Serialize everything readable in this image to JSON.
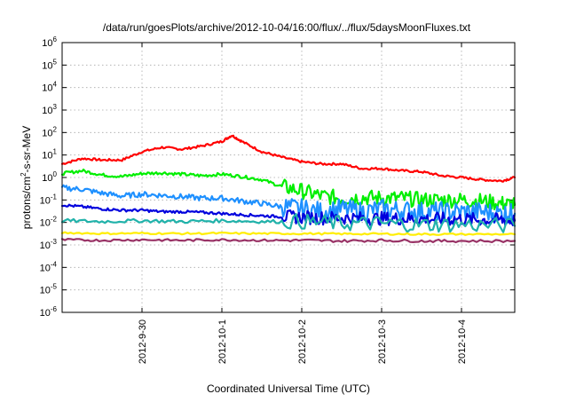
{
  "chart_data": {
    "type": "line",
    "title": "/data/run/goesPlots/archive/2012-10-04/16:00/flux/../flux/5daysMoonFluxes.txt",
    "xlabel": "Coordinated Universal Time (UTC)",
    "ylabel": "protons/cm2-s-sr-MeV",
    "ylabel_parts": {
      "pre": "protons/cm",
      "sup": "2",
      "post": "-s-sr-MeV"
    },
    "y_scale": "log",
    "ylim": [
      1e-06,
      1000000.0
    ],
    "xlim": [
      "2012-09-29T00:00",
      "2012-10-04T16:00"
    ],
    "grid": true,
    "legend": "none",
    "x_ticks": [
      {
        "label": "2012-9-30",
        "at": "2012-09-30T00:00"
      },
      {
        "label": "2012-10-1",
        "at": "2012-10-01T00:00"
      },
      {
        "label": "2012-10-2",
        "at": "2012-10-02T00:00"
      },
      {
        "label": "2012-10-3",
        "at": "2012-10-03T00:00"
      },
      {
        "label": "2012-10-4",
        "at": "2012-10-04T00:00"
      }
    ],
    "y_ticks": [
      {
        "base": "10",
        "exp": "-6",
        "value": 1e-06
      },
      {
        "base": "10",
        "exp": "-5",
        "value": 1e-05
      },
      {
        "base": "10",
        "exp": "-4",
        "value": 0.0001
      },
      {
        "base": "10",
        "exp": "-3",
        "value": 0.001
      },
      {
        "base": "10",
        "exp": "-2",
        "value": 0.01
      },
      {
        "base": "10",
        "exp": "-1",
        "value": 0.1
      },
      {
        "base": "10",
        "exp": "0",
        "value": 1
      },
      {
        "base": "10",
        "exp": "1",
        "value": 10
      },
      {
        "base": "10",
        "exp": "2",
        "value": 100
      },
      {
        "base": "10",
        "exp": "3",
        "value": 1000
      },
      {
        "base": "10",
        "exp": "4",
        "value": 10000
      },
      {
        "base": "10",
        "exp": "5",
        "value": 100000
      },
      {
        "base": "10",
        "exp": "6",
        "value": 1000000
      }
    ],
    "series": [
      {
        "color": "#ff0000",
        "x": [
          "2012-09-29T00:00",
          "2012-09-29T06:00",
          "2012-09-29T12:00",
          "2012-09-29T18:00",
          "2012-09-30T00:00",
          "2012-09-30T06:00",
          "2012-09-30T12:00",
          "2012-09-30T18:00",
          "2012-10-01T00:00",
          "2012-10-01T03:00",
          "2012-10-01T06:00",
          "2012-10-01T12:00",
          "2012-10-01T18:00",
          "2012-10-02T00:00",
          "2012-10-02T06:00",
          "2012-10-02T12:00",
          "2012-10-02T18:00",
          "2012-10-03T00:00",
          "2012-10-03T06:00",
          "2012-10-03T12:00",
          "2012-10-03T18:00",
          "2012-10-04T00:00",
          "2012-10-04T06:00",
          "2012-10-04T12:00",
          "2012-10-04T16:00"
        ],
        "y": [
          4,
          7,
          6,
          6,
          14,
          22,
          18,
          25,
          40,
          75,
          40,
          14,
          8,
          5,
          4,
          4,
          2.5,
          2.5,
          2,
          1.8,
          1.2,
          1,
          0.8,
          0.7,
          1
        ]
      },
      {
        "color": "#00ee00",
        "x": [
          "2012-09-29T00:00",
          "2012-09-29T06:00",
          "2012-09-29T12:00",
          "2012-09-29T18:00",
          "2012-09-30T00:00",
          "2012-09-30T06:00",
          "2012-09-30T12:00",
          "2012-09-30T18:00",
          "2012-10-01T00:00",
          "2012-10-01T06:00",
          "2012-10-01T12:00",
          "2012-10-01T18:00",
          "2012-10-02T00:00",
          "2012-10-02T06:00",
          "2012-10-02T12:00",
          "2012-10-02T18:00",
          "2012-10-03T00:00",
          "2012-10-03T06:00",
          "2012-10-03T12:00",
          "2012-10-03T18:00",
          "2012-10-04T00:00",
          "2012-10-04T06:00",
          "2012-10-04T12:00",
          "2012-10-04T16:00"
        ],
        "y": [
          1.5,
          2,
          1.3,
          1.1,
          1.5,
          1.6,
          1.4,
          1.2,
          1.4,
          1.1,
          0.8,
          0.4,
          0.25,
          0.15,
          0.12,
          0.13,
          0.12,
          0.12,
          0.1,
          0.1,
          0.1,
          0.09,
          0.07,
          0.06
        ]
      },
      {
        "color": "#1e90ff",
        "x": [
          "2012-09-29T00:00",
          "2012-09-29T06:00",
          "2012-09-29T12:00",
          "2012-09-29T18:00",
          "2012-09-30T00:00",
          "2012-09-30T06:00",
          "2012-09-30T12:00",
          "2012-09-30T18:00",
          "2012-10-01T00:00",
          "2012-10-01T06:00",
          "2012-10-01T12:00",
          "2012-10-01T18:00",
          "2012-10-02T00:00",
          "2012-10-02T06:00",
          "2012-10-02T12:00",
          "2012-10-02T18:00",
          "2012-10-03T00:00",
          "2012-10-03T06:00",
          "2012-10-03T12:00",
          "2012-10-03T18:00",
          "2012-10-04T00:00",
          "2012-10-04T06:00",
          "2012-10-04T12:00",
          "2012-10-04T16:00"
        ],
        "y": [
          0.35,
          0.3,
          0.2,
          0.15,
          0.18,
          0.16,
          0.14,
          0.12,
          0.12,
          0.09,
          0.07,
          0.05,
          0.04,
          0.03,
          0.04,
          0.03,
          0.04,
          0.035,
          0.03,
          0.03,
          0.03,
          0.03,
          0.025,
          0.025
        ]
      },
      {
        "color": "#0000dd",
        "x": [
          "2012-09-29T00:00",
          "2012-09-29T06:00",
          "2012-09-29T12:00",
          "2012-09-29T18:00",
          "2012-09-30T00:00",
          "2012-09-30T06:00",
          "2012-09-30T12:00",
          "2012-09-30T18:00",
          "2012-10-01T00:00",
          "2012-10-01T06:00",
          "2012-10-01T12:00",
          "2012-10-01T18:00",
          "2012-10-02T00:00",
          "2012-10-02T06:00",
          "2012-10-02T12:00",
          "2012-10-02T18:00",
          "2012-10-03T00:00",
          "2012-10-03T06:00",
          "2012-10-03T12:00",
          "2012-10-03T18:00",
          "2012-10-04T00:00",
          "2012-10-04T06:00",
          "2012-10-04T12:00",
          "2012-10-04T16:00"
        ],
        "y": [
          0.06,
          0.05,
          0.04,
          0.035,
          0.035,
          0.03,
          0.03,
          0.028,
          0.025,
          0.022,
          0.02,
          0.018,
          0.017,
          0.016,
          0.016,
          0.015,
          0.015,
          0.015,
          0.014,
          0.014,
          0.014,
          0.013,
          0.013,
          0.012
        ]
      },
      {
        "color": "#20b2aa",
        "x": [
          "2012-09-29T00:00",
          "2012-09-29T12:00",
          "2012-09-30T00:00",
          "2012-09-30T12:00",
          "2012-10-01T00:00",
          "2012-10-01T12:00",
          "2012-10-02T00:00",
          "2012-10-02T12:00",
          "2012-10-03T00:00",
          "2012-10-03T12:00",
          "2012-10-04T00:00",
          "2012-10-04T16:00"
        ],
        "y": [
          0.012,
          0.011,
          0.012,
          0.011,
          0.012,
          0.011,
          0.011,
          0.009,
          0.009,
          0.008,
          0.008,
          0.007
        ]
      },
      {
        "color": "#ffee00",
        "x": [
          "2012-09-29T00:00",
          "2012-09-29T12:00",
          "2012-09-30T00:00",
          "2012-09-30T12:00",
          "2012-10-01T00:00",
          "2012-10-01T12:00",
          "2012-10-02T00:00",
          "2012-10-02T12:00",
          "2012-10-03T00:00",
          "2012-10-03T12:00",
          "2012-10-04T00:00",
          "2012-10-04T16:00"
        ],
        "y": [
          0.0035,
          0.0032,
          0.0033,
          0.0032,
          0.0033,
          0.0032,
          0.0032,
          0.0031,
          0.0031,
          0.003,
          0.003,
          0.003
        ]
      },
      {
        "color": "#993366",
        "x": [
          "2012-09-29T00:00",
          "2012-09-29T12:00",
          "2012-09-30T00:00",
          "2012-09-30T12:00",
          "2012-10-01T00:00",
          "2012-10-01T12:00",
          "2012-10-02T00:00",
          "2012-10-02T12:00",
          "2012-10-03T00:00",
          "2012-10-03T12:00",
          "2012-10-04T00:00",
          "2012-10-04T16:00"
        ],
        "y": [
          0.0017,
          0.0016,
          0.0017,
          0.0016,
          0.0017,
          0.0016,
          0.0016,
          0.0015,
          0.0016,
          0.0015,
          0.0015,
          0.0015
        ]
      }
    ]
  }
}
